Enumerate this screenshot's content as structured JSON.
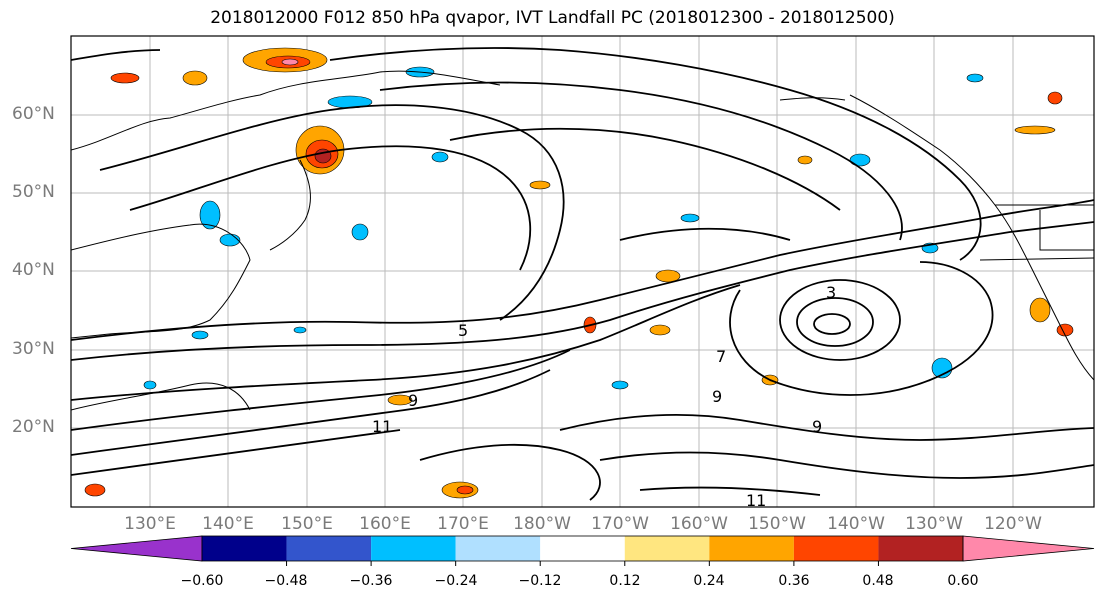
{
  "title": "2018012000 F012 850 hPa qvapor, IVT Landfall PC (2018012300 - 2018012500)",
  "lat_ticks": [
    "60°N",
    "50°N",
    "40°N",
    "30°N",
    "20°N"
  ],
  "lon_ticks": [
    "130°E",
    "140°E",
    "150°E",
    "160°E",
    "170°E",
    "180°W",
    "170°W",
    "160°W",
    "150°W",
    "140°W",
    "130°W",
    "120°W"
  ],
  "colorbar": {
    "colors": [
      "#9932cc",
      "#00008b",
      "#3355cc",
      "#00bfff",
      "#b0e0ff",
      "#ffffff",
      "#ffe680",
      "#ffa500",
      "#ff4500",
      "#b22222",
      "#ff88aa"
    ],
    "tick_labels": [
      "−0.60",
      "−0.48",
      "−0.36",
      "−0.24",
      "−0.12",
      "0.12",
      "0.24",
      "0.36",
      "0.48",
      "0.60"
    ]
  },
  "contour_labels": [
    "5",
    "3",
    "9",
    "11",
    "7"
  ]
}
